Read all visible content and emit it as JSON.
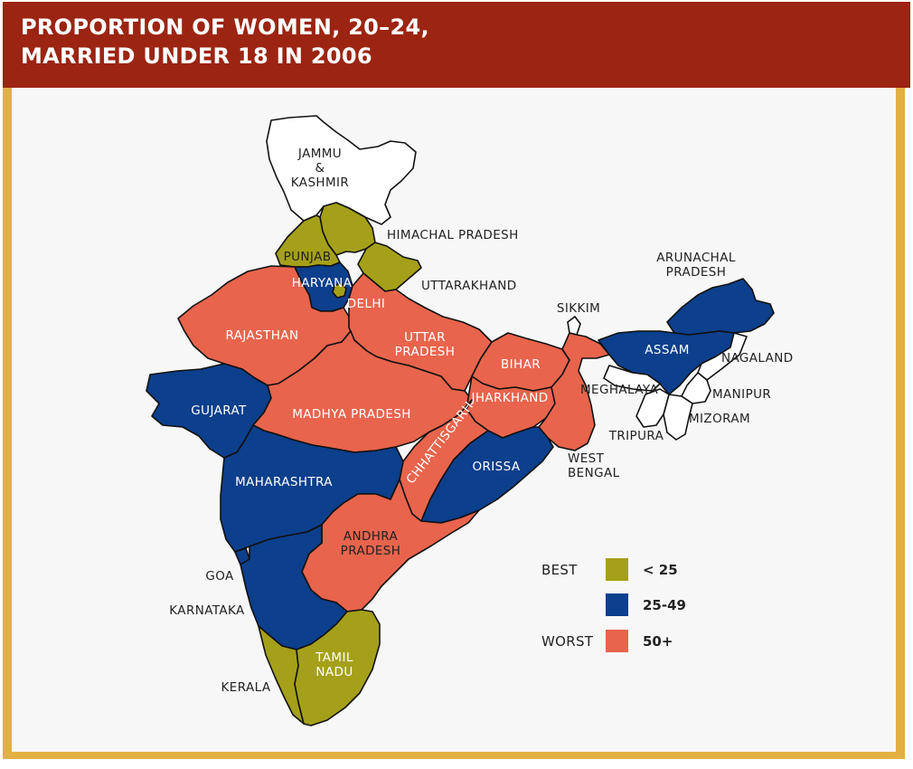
{
  "title": "PROPORTION OF WOMEN, 20–24,\nMARRIED UNDER 18 IN 2006",
  "colors": {
    "header": "#9c2412",
    "border": "#e3b042",
    "best": "#a5a019",
    "mid": "#0c3f8c",
    "worst": "#e8644c",
    "no_data": "#ffffff"
  },
  "legend": {
    "best_label": "BEST",
    "worst_label": "WORST",
    "items": [
      {
        "range": "< 25",
        "category": "best"
      },
      {
        "range": "25-49",
        "category": "mid"
      },
      {
        "range": "50+",
        "category": "worst"
      }
    ]
  },
  "states": {
    "jammu_kashmir": {
      "label": "JAMMU\n&\nKASHMIR",
      "category": "none"
    },
    "himachal_pradesh": {
      "label": "HIMACHAL PRADESH",
      "category": "best"
    },
    "punjab": {
      "label": "PUNJAB",
      "category": "best"
    },
    "uttarakhand": {
      "label": "UTTARAKHAND",
      "category": "best"
    },
    "haryana": {
      "label": "HARYANA",
      "category": "mid"
    },
    "delhi": {
      "label": "DELHI",
      "category": "best"
    },
    "rajasthan": {
      "label": "RAJASTHAN",
      "category": "worst"
    },
    "uttar_pradesh": {
      "label": "UTTAR\nPRADESH",
      "category": "worst"
    },
    "bihar": {
      "label": "BIHAR",
      "category": "worst"
    },
    "sikkim": {
      "label": "SIKKIM",
      "category": "none"
    },
    "arunachal_pradesh": {
      "label": "ARUNACHAL\nPRADESH",
      "category": "mid"
    },
    "assam": {
      "label": "ASSAM",
      "category": "mid"
    },
    "nagaland": {
      "label": "NAGALAND",
      "category": "none"
    },
    "meghalaya": {
      "label": "MEGHALAYA",
      "category": "none"
    },
    "manipur": {
      "label": "MANIPUR",
      "category": "none"
    },
    "mizoram": {
      "label": "MIZORAM",
      "category": "none"
    },
    "tripura": {
      "label": "TRIPURA",
      "category": "none"
    },
    "gujarat": {
      "label": "GUJARAT",
      "category": "mid"
    },
    "madhya_pradesh": {
      "label": "MADHYA PRADESH",
      "category": "worst"
    },
    "jharkhand": {
      "label": "JHARKHAND",
      "category": "worst"
    },
    "chhattisgarh": {
      "label": "CHHATTISGARH",
      "category": "worst"
    },
    "west_bengal": {
      "label": "WEST\nBENGAL",
      "category": "worst"
    },
    "orissa": {
      "label": "ORISSA",
      "category": "mid"
    },
    "maharashtra": {
      "label": "MAHARASHTRA",
      "category": "mid"
    },
    "andhra_pradesh": {
      "label": "ANDHRA\nPRADESH",
      "category": "worst"
    },
    "goa": {
      "label": "GOA",
      "category": "mid"
    },
    "karnataka": {
      "label": "KARNATAKA",
      "category": "mid"
    },
    "kerala": {
      "label": "KERALA",
      "category": "best"
    },
    "tamil_nadu": {
      "label": "TAMIL\nNADU",
      "category": "best"
    }
  }
}
